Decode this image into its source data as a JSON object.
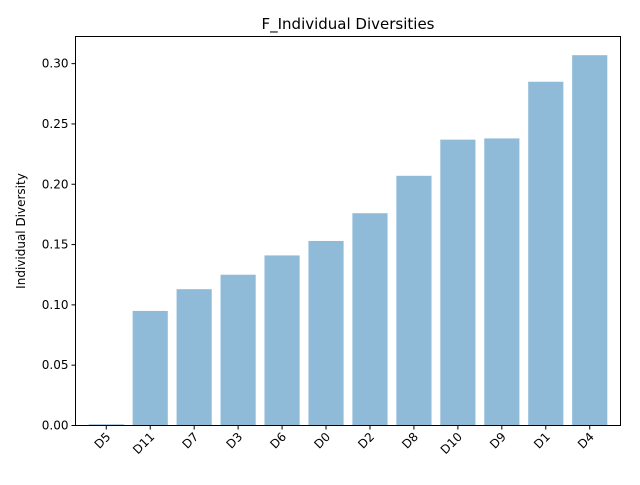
{
  "chart_data": {
    "type": "bar",
    "title": "F_Individual Diversities",
    "xlabel": "",
    "ylabel": "Individual Diversity",
    "categories": [
      "D5",
      "D11",
      "D7",
      "D3",
      "D6",
      "D0",
      "D2",
      "D8",
      "D10",
      "D9",
      "D1",
      "D4"
    ],
    "values": [
      0.001,
      0.095,
      0.113,
      0.125,
      0.141,
      0.153,
      0.176,
      0.207,
      0.237,
      0.238,
      0.285,
      0.307
    ],
    "ylim": [
      0,
      0.3225
    ],
    "yticks": [
      "0.00",
      "0.05",
      "0.10",
      "0.15",
      "0.20",
      "0.25",
      "0.30"
    ],
    "grid": false,
    "bar_color": "#8fbbd9"
  }
}
